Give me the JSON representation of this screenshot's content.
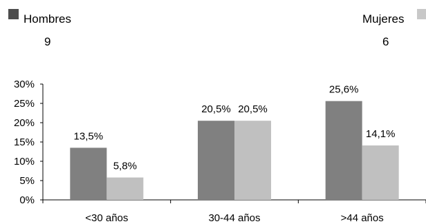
{
  "legend": {
    "men": {
      "label": "Hombres",
      "count": "9",
      "color": "#4d4d4d"
    },
    "women": {
      "label": "Mujeres",
      "count": "6",
      "color": "#c8c8c8"
    }
  },
  "chart_data": {
    "type": "bar",
    "categories": [
      "<30 años",
      "30-44 años",
      ">44 años"
    ],
    "series": [
      {
        "name": "Hombres",
        "values": [
          13.5,
          20.5,
          25.6
        ],
        "labels": [
          "13,5%",
          "20,5%",
          "25,6%"
        ],
        "color": "#808080"
      },
      {
        "name": "Mujeres",
        "values": [
          5.8,
          20.5,
          14.1
        ],
        "labels": [
          "5,8%",
          "20,5%",
          "14,1%"
        ],
        "color": "#c0c0c0"
      }
    ],
    "yticks": [
      0,
      5,
      10,
      15,
      20,
      25,
      30
    ],
    "ytick_labels": [
      "0%",
      "5%",
      "10%",
      "15%",
      "20%",
      "25%",
      "30%"
    ],
    "ylim": [
      0,
      30
    ],
    "grid": false,
    "legend_position": "top"
  }
}
